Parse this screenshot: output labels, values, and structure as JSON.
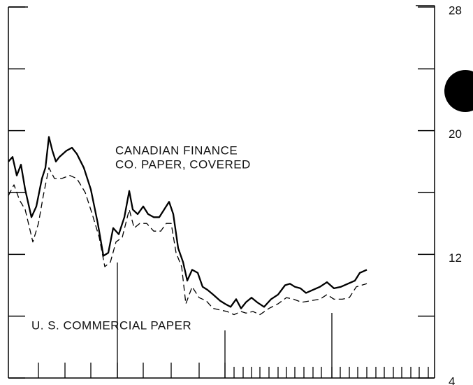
{
  "chart_data": {
    "type": "line",
    "annotations": [
      "CANADIAN FINANCE",
      "CO. PAPER, COVERED",
      "U. S. COMMERCIAL PAPER"
    ],
    "xlim": [
      0,
      610
    ],
    "xticks": [
      43,
      81,
      118,
      156,
      193,
      233,
      273,
      310,
      323,
      336,
      348,
      360,
      373,
      386,
      398,
      410,
      423,
      436,
      448,
      463,
      475,
      488,
      500,
      513,
      526,
      538,
      551,
      563,
      576,
      588,
      601
    ],
    "xticks_long": [
      156,
      310,
      463
    ],
    "ylim": [
      4,
      28
    ],
    "yticks": [
      4,
      12,
      20,
      28
    ],
    "yminor_ticks": [
      8,
      16,
      24
    ],
    "y_axis_side": "right",
    "series": [
      {
        "name": "CANADIAN FINANCE CO. PAPER, COVERED",
        "color": "#000000",
        "dash": "solid",
        "x": [
          0,
          6,
          12,
          18,
          24,
          33,
          40,
          48,
          53,
          58,
          63,
          68,
          73,
          83,
          91,
          98,
          108,
          118,
          128,
          136,
          143,
          150,
          158,
          166,
          173,
          178,
          185,
          193,
          200,
          208,
          216,
          223,
          230,
          236,
          243,
          250,
          256,
          263,
          271,
          278,
          285,
          293,
          303,
          310,
          318,
          326,
          333,
          340,
          348,
          356,
          366,
          376,
          386,
          396,
          403,
          410,
          418,
          426,
          436,
          446,
          456,
          466,
          476,
          486,
          496,
          503,
          513
        ],
        "values": [
          18.0,
          18.3,
          17.1,
          17.8,
          16.2,
          14.4,
          15.1,
          16.9,
          17.6,
          19.6,
          18.7,
          18.0,
          18.3,
          18.7,
          18.9,
          18.5,
          17.6,
          16.2,
          14.0,
          11.9,
          12.1,
          13.7,
          13.3,
          14.4,
          16.1,
          14.9,
          14.6,
          15.1,
          14.6,
          14.4,
          14.4,
          14.9,
          15.4,
          14.6,
          12.4,
          11.5,
          10.3,
          11.0,
          10.8,
          9.9,
          9.7,
          9.4,
          9.0,
          8.8,
          8.6,
          9.1,
          8.5,
          8.9,
          9.2,
          8.9,
          8.6,
          9.1,
          9.4,
          10.0,
          10.1,
          9.9,
          9.8,
          9.5,
          9.7,
          9.9,
          10.2,
          9.8,
          9.9,
          10.1,
          10.3,
          10.8,
          11.0
        ]
      },
      {
        "name": "U. S. COMMERCIAL PAPER",
        "color": "#000000",
        "dash": "dashed",
        "x": [
          0,
          8,
          16,
          24,
          35,
          43,
          50,
          58,
          66,
          76,
          88,
          98,
          110,
          120,
          130,
          138,
          146,
          154,
          163,
          173,
          180,
          188,
          198,
          208,
          218,
          226,
          233,
          240,
          248,
          254,
          263,
          273,
          283,
          293,
          303,
          313,
          323,
          333,
          340,
          350,
          360,
          373,
          386,
          398,
          408,
          420,
          433,
          446,
          456,
          466,
          478,
          488,
          498,
          513
        ],
        "values": [
          15.8,
          16.5,
          15.5,
          14.9,
          12.8,
          14.0,
          15.8,
          17.6,
          16.9,
          16.9,
          17.1,
          16.9,
          16.0,
          14.6,
          13.1,
          11.2,
          11.5,
          12.8,
          13.1,
          14.9,
          13.7,
          14.0,
          14.0,
          13.5,
          13.5,
          14.0,
          14.0,
          12.1,
          11.2,
          8.8,
          9.9,
          9.2,
          9.0,
          8.5,
          8.4,
          8.3,
          8.1,
          8.3,
          8.2,
          8.3,
          8.1,
          8.5,
          8.8,
          9.2,
          9.1,
          8.9,
          9.0,
          9.1,
          9.4,
          9.1,
          9.1,
          9.2,
          9.9,
          10.1
        ]
      }
    ]
  }
}
